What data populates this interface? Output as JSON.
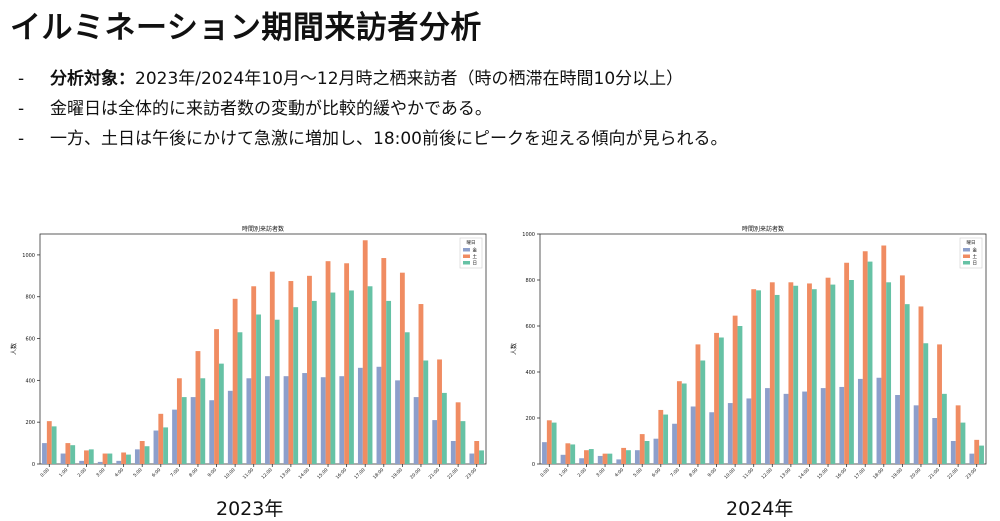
{
  "slide": {
    "title": "イルミネーション期間来訪者分析",
    "bullets": [
      {
        "dash": "-",
        "lead": "分析対象：",
        "text": "2023年/2024年10月〜12月時之栖来訪者（時の栖滞在時間10分以上）"
      },
      {
        "dash": "-",
        "lead": "",
        "text": "金曜日は全体的に来訪者数の変動が比較的緩やかである。"
      },
      {
        "dash": "-",
        "lead": "",
        "text": "一方、土日は午後にかけて急激に増加し、18:00前後にピークを迎える傾向が見られる。"
      }
    ]
  },
  "colors": {
    "fri": "#8d9fcb",
    "sat": "#f08c62",
    "sun": "#66c2a5",
    "axis": "#333333",
    "text": "#111111"
  },
  "chart_data": [
    {
      "type": "bar",
      "caption": "2023年",
      "title": "時間別来訪者数",
      "xlabel": "",
      "ylabel": "人数",
      "ylim": [
        0,
        1100
      ],
      "yticks": [
        0,
        200,
        400,
        600,
        800,
        1000
      ],
      "legend": {
        "title": "曜日",
        "position": "top-right"
      },
      "categories": [
        "0:00",
        "1:00",
        "2:00",
        "3:00",
        "4:00",
        "5:00",
        "6:00",
        "7:00",
        "8:00",
        "9:00",
        "10:00",
        "11:00",
        "12:00",
        "13:00",
        "14:00",
        "15:00",
        "16:00",
        "17:00",
        "18:00",
        "19:00",
        "20:00",
        "21:00",
        "22:00",
        "23:00"
      ],
      "series": [
        {
          "name": "金",
          "color_key": "fri",
          "values": [
            100,
            50,
            15,
            10,
            15,
            70,
            160,
            260,
            320,
            305,
            350,
            410,
            420,
            420,
            435,
            415,
            420,
            460,
            465,
            400,
            320,
            210,
            110,
            50
          ]
        },
        {
          "name": "土",
          "color_key": "sat",
          "values": [
            205,
            100,
            65,
            50,
            55,
            110,
            240,
            410,
            540,
            645,
            790,
            850,
            920,
            875,
            900,
            970,
            960,
            1070,
            985,
            915,
            765,
            500,
            295,
            110
          ]
        },
        {
          "name": "日",
          "color_key": "sun",
          "values": [
            180,
            90,
            70,
            50,
            45,
            85,
            175,
            320,
            410,
            480,
            630,
            715,
            690,
            750,
            780,
            820,
            830,
            850,
            780,
            630,
            495,
            340,
            205,
            65
          ]
        }
      ]
    },
    {
      "type": "bar",
      "caption": "2024年",
      "title": "時間別来訪者数",
      "xlabel": "",
      "ylabel": "人数",
      "ylim": [
        0,
        1000
      ],
      "yticks": [
        0,
        200,
        400,
        600,
        800,
        1000
      ],
      "legend": {
        "title": "曜日",
        "position": "top-right"
      },
      "categories": [
        "0:00",
        "1:00",
        "2:00",
        "3:00",
        "4:00",
        "5:00",
        "6:00",
        "7:00",
        "8:00",
        "9:00",
        "10:00",
        "11:00",
        "12:00",
        "13:00",
        "14:00",
        "15:00",
        "16:00",
        "17:00",
        "18:00",
        "19:00",
        "20:00",
        "21:00",
        "22:00",
        "23:00"
      ],
      "series": [
        {
          "name": "金",
          "color_key": "fri",
          "values": [
            95,
            40,
            25,
            35,
            20,
            60,
            110,
            175,
            250,
            225,
            265,
            285,
            330,
            305,
            315,
            330,
            335,
            370,
            375,
            300,
            255,
            200,
            100,
            45
          ]
        },
        {
          "name": "土",
          "color_key": "sat",
          "values": [
            190,
            90,
            60,
            45,
            70,
            130,
            235,
            360,
            520,
            570,
            645,
            760,
            790,
            790,
            785,
            810,
            875,
            925,
            950,
            820,
            685,
            520,
            255,
            105
          ]
        },
        {
          "name": "日",
          "color_key": "sun",
          "values": [
            180,
            85,
            65,
            45,
            60,
            100,
            215,
            350,
            450,
            550,
            600,
            755,
            735,
            775,
            760,
            780,
            800,
            880,
            790,
            695,
            525,
            305,
            180,
            80
          ]
        }
      ]
    }
  ]
}
